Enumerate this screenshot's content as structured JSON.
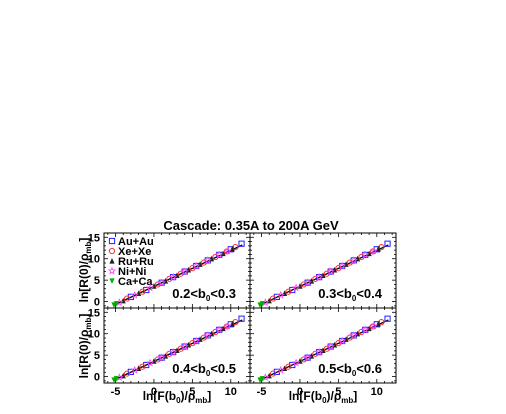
{
  "chart_data": {
    "type": "scatter",
    "title": "Cascade: 0.35A to 200A GeV",
    "xlabel": {
      "pre": "ln[",
      "f": "F",
      "tilde": "~",
      "mid": "(b",
      "sub0": "0",
      "mid2": ")/ρ",
      "submb": "mb",
      "post": "]"
    },
    "ylabel": {
      "pre": "ln[R(0)/ρ",
      "submb": "mb",
      "post": "]"
    },
    "xlim": [
      -6.5,
      12.5
    ],
    "ylim": [
      -1.5,
      16
    ],
    "xticks": [
      "-5",
      "0",
      "5",
      "10"
    ],
    "xtick_values": [
      -5,
      0,
      5,
      10
    ],
    "yticks": [
      "0",
      "5",
      "10",
      "15"
    ],
    "ytick_values": [
      0,
      5,
      10,
      15
    ],
    "fit_line": {
      "x": [
        -5.3,
        11.5
      ],
      "y": [
        -0.9,
        13.2
      ]
    },
    "series": [
      {
        "name": "Au+Au",
        "marker": "open-square",
        "color": "#2020ff",
        "x": [
          -3.0,
          -1.0,
          1.0,
          2.5,
          4.0,
          5.5,
          7.0,
          8.5,
          10.0,
          11.4
        ],
        "y": [
          1.1,
          2.7,
          4.4,
          5.7,
          7.0,
          8.3,
          9.6,
          10.9,
          12.2,
          13.5
        ]
      },
      {
        "name": "Xe+Xe",
        "marker": "open-circle",
        "color": "#ff3030",
        "x": [
          -3.5,
          -1.5,
          0.5,
          2.0,
          3.5,
          5.0,
          6.5,
          8.0,
          9.5,
          10.6
        ],
        "y": [
          0.7,
          2.3,
          4.0,
          5.3,
          6.5,
          7.8,
          9.1,
          10.4,
          11.7,
          12.7
        ]
      },
      {
        "name": "Ru+Ru",
        "marker": "filled-triangle",
        "color": "#222222",
        "x": [
          -4.0,
          -2.0,
          0.0,
          1.5,
          3.0,
          4.5,
          6.0,
          7.5,
          9.0,
          10.2
        ],
        "y": [
          0.2,
          1.9,
          3.6,
          4.8,
          6.1,
          7.4,
          8.7,
          10.0,
          11.2,
          12.3
        ]
      },
      {
        "name": "Ni+Ni",
        "marker": "open-star",
        "color": "#ff40ff",
        "x": [
          -4.5,
          -2.5,
          -0.5,
          1.0,
          2.5,
          4.0,
          5.5,
          7.0,
          8.5,
          9.6
        ],
        "y": [
          -0.2,
          1.5,
          3.2,
          4.4,
          5.7,
          7.0,
          8.3,
          9.6,
          10.9,
          11.8
        ]
      },
      {
        "name": "Ca+Ca",
        "marker": "filled-triangle-down",
        "color": "#00b000",
        "x": [
          -5.2,
          -4.9
        ],
        "y": [
          -0.8,
          -0.5
        ]
      }
    ],
    "panels": [
      {
        "label_pre": "0.2<b",
        "label_sub": "0",
        "label_post": "<0.3"
      },
      {
        "label_pre": "0.3<b",
        "label_sub": "0",
        "label_post": "<0.4"
      },
      {
        "label_pre": "0.4<b",
        "label_sub": "0",
        "label_post": "<0.5"
      },
      {
        "label_pre": "0.5<b",
        "label_sub": "0",
        "label_post": "<0.6"
      }
    ],
    "legend_position": "top-left of first panel",
    "grid": false
  }
}
